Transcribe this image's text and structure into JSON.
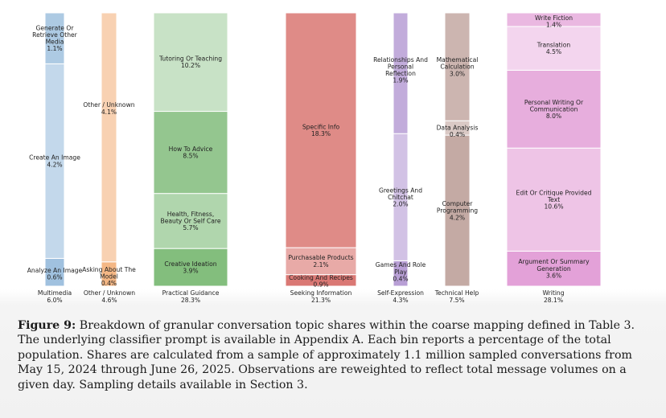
{
  "chart_data": {
    "type": "bar",
    "subtype": "stacked-100-variable-width",
    "value_unit": "percent of total population",
    "ylim": [
      0,
      100
    ],
    "categories": [
      {
        "name": "Multimedia",
        "share_label": "6.0%",
        "share": 6.0,
        "color": "#9bbedd",
        "segments": [
          {
            "label": "Analyze An Image",
            "value": 0.6,
            "value_label": "0.6%"
          },
          {
            "label": "Create An Image",
            "value": 4.2,
            "value_label": "4.2%"
          },
          {
            "label": "Generate Or Retrieve Other Media",
            "value": 1.1,
            "value_label": "1.1%"
          }
        ]
      },
      {
        "name": "Other / Unknown",
        "share_label": "4.6%",
        "share": 4.6,
        "color": "#f3b37e",
        "segments": [
          {
            "label": "Asking About The Model",
            "value": 0.4,
            "value_label": "0.4%"
          },
          {
            "label": "Other / Unknown",
            "value": 4.1,
            "value_label": "4.1%"
          }
        ]
      },
      {
        "name": "Practical Guidance",
        "share_label": "28.3%",
        "share": 28.3,
        "color": "#7cba76",
        "segments": [
          {
            "label": "Creative Ideation",
            "value": 3.9,
            "value_label": "3.9%"
          },
          {
            "label": "Health, Fitness, Beauty Or Self Care",
            "value": 5.7,
            "value_label": "5.7%"
          },
          {
            "label": "How To Advice",
            "value": 8.5,
            "value_label": "8.5%"
          },
          {
            "label": "Tutoring Or Teaching",
            "value": 10.2,
            "value_label": "10.2%"
          }
        ]
      },
      {
        "name": "Seeking Information",
        "share_label": "21.3%",
        "share": 21.3,
        "color": "#d8716d",
        "segments": [
          {
            "label": "Cooking And Recipes",
            "value": 0.9,
            "value_label": "0.9%"
          },
          {
            "label": "Purchasable Products",
            "value": 2.1,
            "value_label": "2.1%"
          },
          {
            "label": "Specific Info",
            "value": 18.3,
            "value_label": "18.3%"
          }
        ]
      },
      {
        "name": "Self-Expression",
        "share_label": "4.3%",
        "share": 4.3,
        "color": "#b49ad3",
        "segments": [
          {
            "label": "Games And Role Play",
            "value": 0.4,
            "value_label": "0.4%"
          },
          {
            "label": "Greetings And Chitchat",
            "value": 2.0,
            "value_label": "2.0%"
          },
          {
            "label": "Relationships And Personal Reflection",
            "value": 1.9,
            "value_label": "1.9%"
          }
        ]
      },
      {
        "name": "Technical Help",
        "share_label": "7.5%",
        "share": 7.5,
        "color": "#c1a59f",
        "segments": [
          {
            "label": "Computer Programming",
            "value": 4.2,
            "value_label": "4.2%"
          },
          {
            "label": "Data Analysis",
            "value": 0.4,
            "value_label": "0.4%"
          },
          {
            "label": "Mathematical Calculation",
            "value": 3.0,
            "value_label": "3.0%"
          }
        ]
      },
      {
        "name": "Writing",
        "share_label": "28.1%",
        "share": 28.1,
        "color": "#e29cd6",
        "segments": [
          {
            "label": "Argument Or Summary Generation",
            "value": 3.6,
            "value_label": "3.6%"
          },
          {
            "label": "Edit Or Critique Provided Text",
            "value": 10.6,
            "value_label": "10.6%"
          },
          {
            "label": "Personal Writing Or Communication",
            "value": 8.0,
            "value_label": "8.0%"
          },
          {
            "label": "Translation",
            "value": 4.5,
            "value_label": "4.5%"
          },
          {
            "label": "Write Fiction",
            "value": 1.4,
            "value_label": "1.4%"
          }
        ]
      }
    ]
  },
  "caption": {
    "label": "Figure 9:",
    "text": "Breakdown of granular conversation topic shares within the coarse mapping defined in Table 3. The underlying classifier prompt is available in Appendix A. Each bin reports a percentage of the total population. Shares are calculated from a sample of approximately 1.1 million sampled conversations from May 15, 2024 through June 26, 2025. Observations are reweighted to reflect total message volumes on a given day. Sampling details available in Section 3."
  }
}
